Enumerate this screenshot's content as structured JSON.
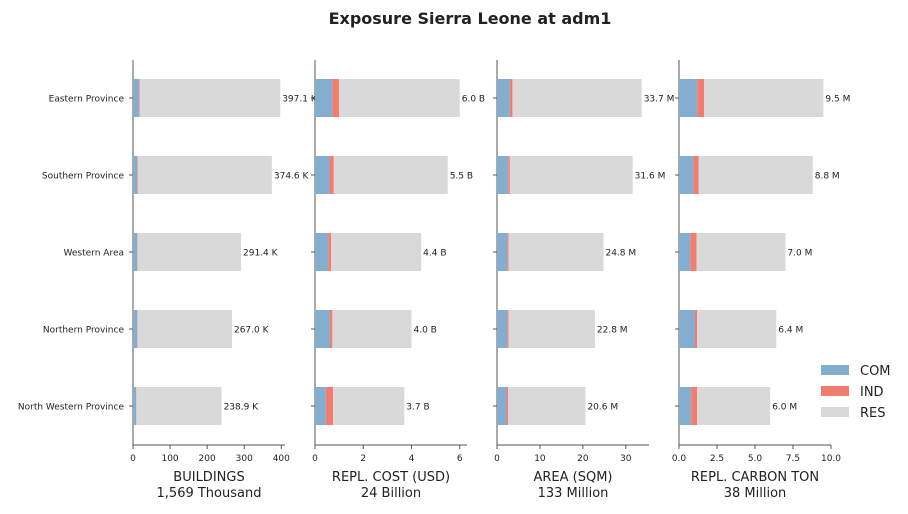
{
  "title": "Exposure Sierra Leone at adm1",
  "chart_data": {
    "type": "bar",
    "orientation": "horizontal",
    "stacked": true,
    "categories": [
      "Eastern Province",
      "Southern Province",
      "Western Area",
      "Northern Province",
      "North Western Province"
    ],
    "legend": {
      "placement": "bottom-right",
      "entries": [
        {
          "name": "COM",
          "color": "#84aed0"
        },
        {
          "name": "IND",
          "color": "#f47c6e"
        },
        {
          "name": "RES",
          "color": "#d9d9d9"
        }
      ]
    },
    "grid": false,
    "panels": [
      {
        "xlabel": "BUILDINGS",
        "subtitle": "1,569 Thousand",
        "xlim": [
          0,
          410
        ],
        "ticks": [
          0,
          100,
          200,
          300,
          400
        ],
        "tick_labels": [
          "0",
          "100",
          "200",
          "300",
          "400"
        ],
        "series": [
          {
            "name": "COM",
            "values": [
              16,
              11,
              11,
              11,
              8
            ]
          },
          {
            "name": "IND",
            "values": [
              2,
              2,
              1,
              1,
              1
            ]
          },
          {
            "name": "RES",
            "values": [
              379.1,
              361.6,
              279.4,
              255.0,
              229.9
            ]
          }
        ],
        "labels": [
          "397.1 K",
          "374.6 K",
          "291.4 K",
          "267.0 K",
          "238.9 K"
        ]
      },
      {
        "xlabel": "REPL. COST (USD)",
        "subtitle": "24 Billion",
        "xlim": [
          0,
          6.3
        ],
        "ticks": [
          0,
          2,
          4,
          6
        ],
        "tick_labels": [
          "0",
          "2",
          "4",
          "6"
        ],
        "series": [
          {
            "name": "COM",
            "values": [
              0.72,
              0.6,
              0.55,
              0.62,
              0.45
            ]
          },
          {
            "name": "IND",
            "values": [
              0.28,
              0.18,
              0.12,
              0.1,
              0.3
            ]
          },
          {
            "name": "RES",
            "values": [
              5.0,
              4.72,
              3.73,
              3.28,
              2.95
            ]
          }
        ],
        "labels": [
          "6.0 B",
          "5.5 B",
          "4.4 B",
          "4.0 B",
          "3.7 B"
        ]
      },
      {
        "xlabel": "AREA (SQM)",
        "subtitle": "133 Million",
        "xlim": [
          0,
          35.4
        ],
        "ticks": [
          0,
          10,
          20,
          30
        ],
        "tick_labels": [
          "0",
          "10",
          "20",
          "30"
        ],
        "series": [
          {
            "name": "COM",
            "values": [
              3.0,
              2.6,
              2.4,
              2.4,
              2.2
            ]
          },
          {
            "name": "IND",
            "values": [
              0.6,
              0.4,
              0.3,
              0.3,
              0.4
            ]
          },
          {
            "name": "RES",
            "values": [
              30.1,
              28.6,
              22.1,
              20.1,
              18.0
            ]
          }
        ],
        "labels": [
          "33.7 M",
          "31.6 M",
          "24.8 M",
          "22.8 M",
          "20.6 M"
        ]
      },
      {
        "xlabel": "REPL. CARBON TON",
        "subtitle": "38 Million",
        "xlim": [
          0,
          10
        ],
        "ticks": [
          0,
          2.5,
          5,
          7.5,
          10
        ],
        "tick_labels": [
          "0.0",
          "2.5",
          "5.0",
          "7.5",
          "10.0"
        ],
        "series": [
          {
            "name": "COM",
            "values": [
              1.2,
              0.95,
              0.75,
              1.05,
              0.8
            ]
          },
          {
            "name": "IND",
            "values": [
              0.45,
              0.35,
              0.4,
              0.15,
              0.4
            ]
          },
          {
            "name": "RES",
            "values": [
              7.85,
              7.5,
              5.85,
              5.2,
              4.8
            ]
          }
        ],
        "labels": [
          "9.5 M",
          "8.8 M",
          "7.0 M",
          "6.4 M",
          "6.0 M"
        ]
      }
    ]
  }
}
